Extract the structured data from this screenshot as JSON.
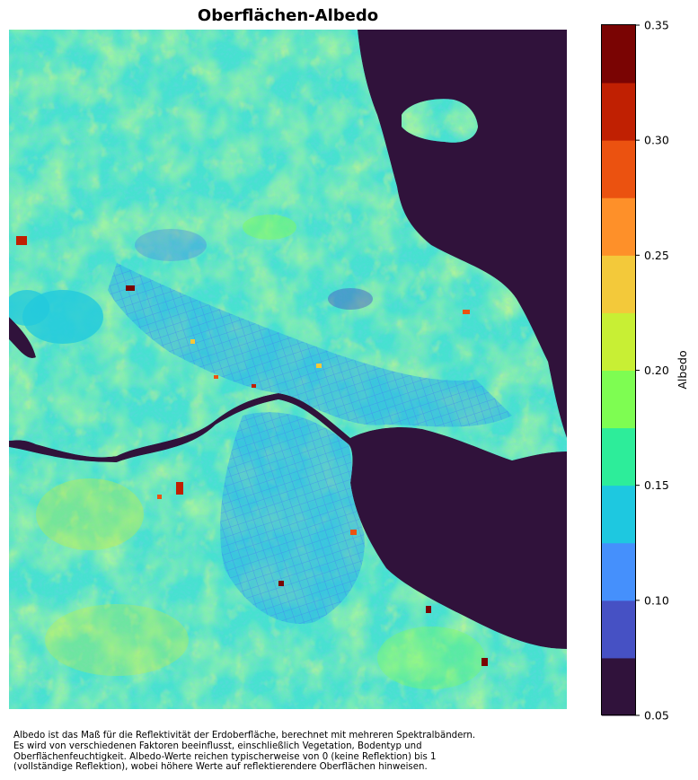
{
  "figure": {
    "title": "Oberflächen-Albedo",
    "caption": "Albedo ist das Maß für die Reflektivität der Erdoberfläche, berechnet mit mehreren Spektralbändern.\nEs wird von verschiedenen Faktoren beeinflusst, einschließlich Vegetation, Bodentyp und\nOberflächenfeuchtigkeit. Albedo-Werte reichen typischerweise von 0 (keine Reflektion) bis 1\n(vollständige Reflektion), wobei höhere Werte auf reflektierendere Oberflächen hinweisen."
  },
  "chart_data": {
    "type": "heatmap",
    "title": "Oberflächen-Albedo",
    "colorbar": {
      "label": "Albedo",
      "range": [
        0.05,
        0.35
      ],
      "ticks": [
        0.05,
        0.1,
        0.15,
        0.2,
        0.25,
        0.3,
        0.35
      ],
      "tick_labels": [
        "0.05",
        "0.10",
        "0.15",
        "0.20",
        "0.25",
        "0.30",
        "0.35"
      ],
      "levels": [
        {
          "from": 0.05,
          "to": 0.075,
          "color": "#30123b"
        },
        {
          "from": 0.075,
          "to": 0.1,
          "color": "#4651c4"
        },
        {
          "from": 0.1,
          "to": 0.125,
          "color": "#4590fc"
        },
        {
          "from": 0.125,
          "to": 0.15,
          "color": "#1ec8e0"
        },
        {
          "from": 0.15,
          "to": 0.175,
          "color": "#2ded9a"
        },
        {
          "from": 0.175,
          "to": 0.2,
          "color": "#7efd52"
        },
        {
          "from": 0.2,
          "to": 0.225,
          "color": "#c8ef34"
        },
        {
          "from": 0.225,
          "to": 0.25,
          "color": "#f3c93a"
        },
        {
          "from": 0.25,
          "to": 0.275,
          "color": "#fe9029"
        },
        {
          "from": 0.275,
          "to": 0.3,
          "color": "#eb5210"
        },
        {
          "from": 0.3,
          "to": 0.325,
          "color": "#c02002"
        },
        {
          "from": 0.325,
          "to": 0.35,
          "color": "#7a0403"
        }
      ],
      "placement": "right"
    },
    "axes": "off",
    "grid": false
  }
}
